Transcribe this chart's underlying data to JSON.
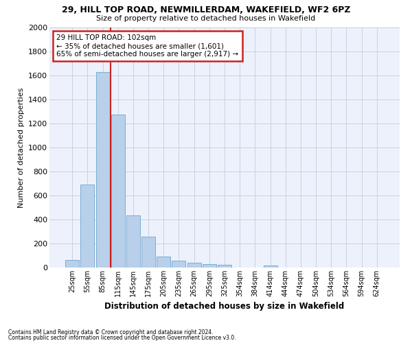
{
  "title1": "29, HILL TOP ROAD, NEWMILLERDAM, WAKEFIELD, WF2 6PZ",
  "title2": "Size of property relative to detached houses in Wakefield",
  "xlabel": "Distribution of detached houses by size in Wakefield",
  "ylabel": "Number of detached properties",
  "bar_color": "#b8d0ea",
  "bar_edge_color": "#7aadd4",
  "grid_color": "#c8d0e0",
  "background_color": "#edf1fb",
  "property_line_color": "#cc2222",
  "annotation_box_color": "#cc2222",
  "categories": [
    "25sqm",
    "55sqm",
    "85sqm",
    "115sqm",
    "145sqm",
    "175sqm",
    "205sqm",
    "235sqm",
    "265sqm",
    "295sqm",
    "325sqm",
    "354sqm",
    "384sqm",
    "414sqm",
    "444sqm",
    "474sqm",
    "504sqm",
    "534sqm",
    "564sqm",
    "594sqm",
    "624sqm"
  ],
  "values": [
    65,
    690,
    1630,
    1275,
    435,
    255,
    90,
    55,
    40,
    30,
    25,
    0,
    0,
    20,
    0,
    0,
    0,
    0,
    0,
    0,
    0
  ],
  "ylim": [
    0,
    2000
  ],
  "yticks": [
    0,
    200,
    400,
    600,
    800,
    1000,
    1200,
    1400,
    1600,
    1800,
    2000
  ],
  "property_bin_index": 2.5,
  "annotation_title": "29 HILL TOP ROAD: 102sqm",
  "annotation_line1": "← 35% of detached houses are smaller (1,601)",
  "annotation_line2": "65% of semi-detached houses are larger (2,917) →",
  "footnote1": "Contains HM Land Registry data © Crown copyright and database right 2024.",
  "footnote2": "Contains public sector information licensed under the Open Government Licence v3.0."
}
